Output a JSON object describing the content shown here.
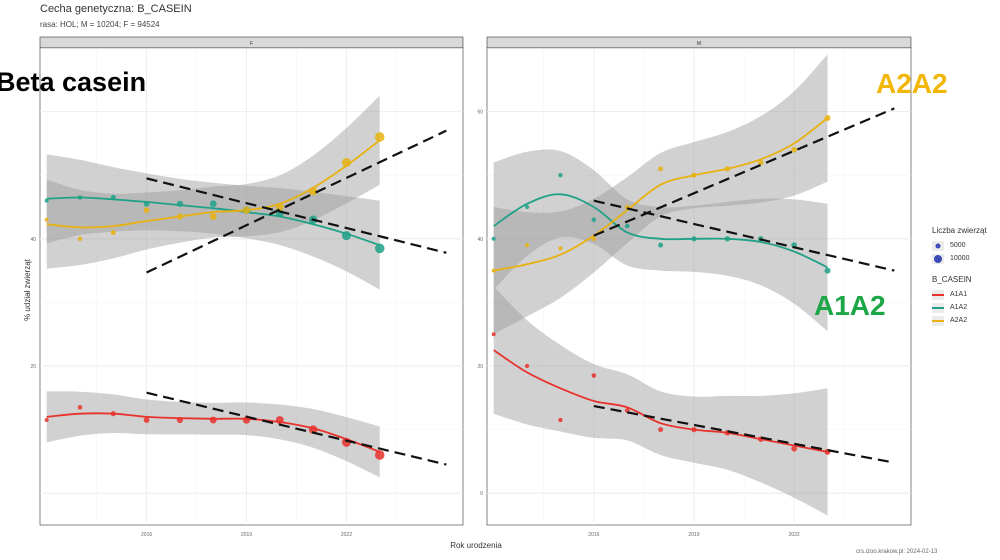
{
  "chart_data": {
    "type": "line",
    "title": "Cecha genetyczna: B_CASEIN",
    "subtitle": "rasa: HOL; M = 10204; F = 94524",
    "xlabel": "Rok urodzenia",
    "ylabel": "% udział zwierząt",
    "footer": "crs.izoo.krakow.pl: 2024-02-13",
    "overlay_labels": {
      "beta_casein": "Beta casein",
      "a2a2": "A2A2",
      "a1a2": "A1A2"
    },
    "legend": {
      "size_title": "Liczba zwierząt",
      "size_entries": [
        "5000",
        "10000"
      ],
      "color_title": "B_CASEIN",
      "color_entries": [
        {
          "name": "A1A1",
          "color": "#E8322C"
        },
        {
          "name": "A1A2",
          "color": "#1FA187"
        },
        {
          "name": "A2A2",
          "color": "#E8B10F"
        }
      ]
    },
    "grid": true,
    "ylim": [
      -5,
      70
    ],
    "panels": [
      {
        "name": "F",
        "xlim": [
          2012.8,
          2025.5
        ],
        "xticks": [
          2016,
          2019,
          2022
        ],
        "yticks": [
          20,
          40
        ],
        "series": [
          {
            "name": "A1A1",
            "color": "#E8322C",
            "x": [
              2013,
              2014,
              2015,
              2016,
              2017,
              2018,
              2019,
              2020,
              2021,
              2022,
              2023
            ],
            "y": [
              11.5,
              13.5,
              12.5,
              11.5,
              11.5,
              11.5,
              11.5,
              11.5,
              10.0,
              8.0,
              6.0
            ],
            "smooth": [
              12.0,
              12.5,
              12.5,
              12.0,
              11.8,
              11.7,
              11.7,
              11.2,
              10.2,
              8.5,
              6.5
            ],
            "trend": [
              [
                2016,
                15.8
              ],
              [
                2025,
                4.5
              ]
            ]
          },
          {
            "name": "A1A2",
            "color": "#1FA187",
            "x": [
              2013,
              2014,
              2015,
              2016,
              2017,
              2018,
              2019,
              2020,
              2021,
              2022,
              2023
            ],
            "y": [
              46.0,
              46.5,
              46.5,
              45.5,
              45.5,
              45.5,
              44.5,
              44.0,
              43.0,
              40.5,
              38.5
            ],
            "smooth": [
              46.3,
              46.5,
              46.2,
              45.8,
              45.3,
              44.8,
              44.2,
              43.5,
              42.3,
              40.8,
              39.0
            ],
            "trend": [
              [
                2016,
                49.5
              ],
              [
                2025,
                37.8
              ]
            ]
          },
          {
            "name": "A2A2",
            "color": "#E8B10F",
            "x": [
              2013,
              2014,
              2015,
              2016,
              2017,
              2018,
              2019,
              2020,
              2021,
              2022,
              2023
            ],
            "y": [
              43.0,
              40.0,
              41.0,
              44.5,
              43.5,
              43.5,
              44.5,
              45.0,
              47.5,
              52.0,
              56.0
            ],
            "smooth": [
              42.3,
              41.8,
              42.0,
              42.8,
              43.5,
              44.2,
              44.5,
              45.5,
              48.0,
              51.5,
              55.5
            ],
            "trend": [
              [
                2016,
                34.7
              ],
              [
                2025,
                57.0
              ]
            ]
          }
        ]
      },
      {
        "name": "M",
        "xlim": [
          2012.8,
          2025.5
        ],
        "xticks": [
          2016,
          2019,
          2022
        ],
        "yticks": [
          0,
          20,
          40,
          60
        ],
        "series": [
          {
            "name": "A1A1",
            "color": "#E8322C",
            "x": [
              2013,
              2014,
              2015,
              2016,
              2017,
              2018,
              2019,
              2020,
              2021,
              2022,
              2023
            ],
            "y": [
              25.0,
              20.0,
              11.5,
              18.5,
              13.0,
              10.0,
              10.0,
              9.5,
              8.5,
              7.0,
              6.5
            ],
            "smooth": [
              22.5,
              19.0,
              16.5,
              14.5,
              13.5,
              11.0,
              10.0,
              9.5,
              8.5,
              7.5,
              6.5
            ],
            "trend": [
              [
                2016,
                13.7
              ],
              [
                2025,
                4.8
              ]
            ]
          },
          {
            "name": "A1A2",
            "color": "#1FA187",
            "x": [
              2013,
              2014,
              2015,
              2016,
              2017,
              2018,
              2019,
              2020,
              2021,
              2022,
              2023
            ],
            "y": [
              40.0,
              45.0,
              50.0,
              43.0,
              42.0,
              39.0,
              40.0,
              40.0,
              40.0,
              39.0,
              35.0
            ],
            "smooth": [
              42.0,
              45.5,
              47.0,
              45.0,
              41.0,
              40.0,
              40.0,
              40.0,
              39.5,
              38.0,
              35.5
            ],
            "trend": [
              [
                2016,
                46.0
              ],
              [
                2025,
                35.0
              ]
            ]
          },
          {
            "name": "A2A2",
            "color": "#E8B10F",
            "x": [
              2013,
              2014,
              2015,
              2016,
              2017,
              2018,
              2019,
              2020,
              2021,
              2022,
              2023
            ],
            "y": [
              35.0,
              39.0,
              38.5,
              40.0,
              45.0,
              51.0,
              50.0,
              51.0,
              52.0,
              54.0,
              59.0
            ],
            "smooth": [
              35.0,
              36.0,
              37.5,
              40.5,
              44.5,
              48.5,
              50.0,
              51.0,
              52.5,
              55.0,
              59.0
            ],
            "trend": [
              [
                2016,
                40.5
              ],
              [
                2025,
                60.5
              ]
            ]
          }
        ]
      }
    ]
  }
}
